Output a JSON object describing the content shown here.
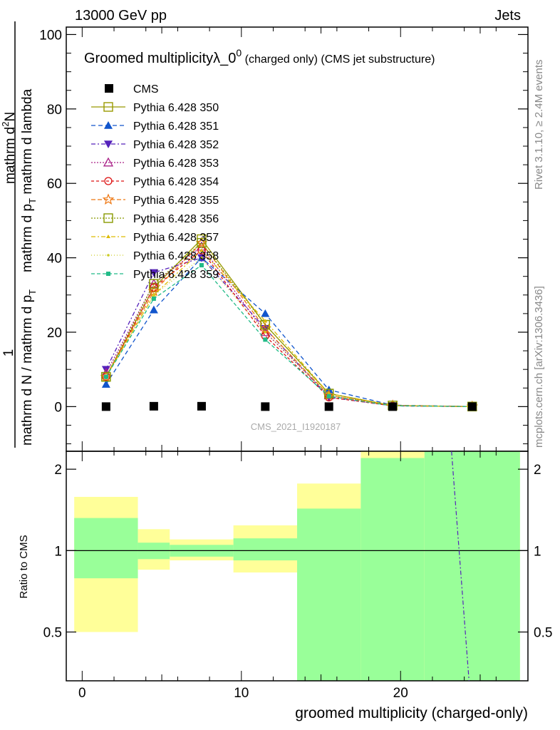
{
  "header": {
    "left": "13000 GeV pp",
    "right": "Jets"
  },
  "title": {
    "main": "Groomed multiplicity",
    "lambda": "λ_0",
    "sup": "0",
    "tail": " (charged only) (CMS jet substructure)"
  },
  "side_texts": {
    "rivet": "Rivet 3.1.10, ≥ 2.4M events",
    "mcplots": "mcplots.cern.ch [arXiv:1306.3436]"
  },
  "watermark": "CMS_2021_I1920187",
  "ylabel": {
    "one": "1",
    "denominator": "mathrm d N / mathrm d p",
    "denominator_sub": "T",
    "numerator_lower": "mathrm d p",
    "numerator_sub": "T",
    "numerator_rest": " mathrm d lambda",
    "numerator_upper": "mathrm d",
    "numerator_sup": "2",
    "numerator_n": "N"
  },
  "ratio_ylabel": "Ratio to CMS",
  "xlabel": "groomed multiplicity (charged-only)",
  "chart_data": [
    {
      "type": "line",
      "panel": "main",
      "xlim": [
        -1,
        28
      ],
      "ylim": [
        -12,
        102
      ],
      "y_ticks": [
        0,
        20,
        40,
        60,
        80,
        100
      ],
      "y_tick_labels": [
        "0",
        "20",
        "40",
        "60",
        "80",
        "100"
      ],
      "legend_placement": "top-left",
      "data_x": [
        1.5,
        4.5,
        7.5,
        11.5,
        15.5,
        19.5,
        24.5
      ],
      "data_label": "CMS",
      "data_y": [
        0,
        0.1,
        0.1,
        0,
        0,
        0,
        0
      ],
      "series": [
        {
          "name": "Pythia 6.428 350",
          "color": "#999900",
          "marker": "square-open",
          "dash": "",
          "y": [
            8,
            32,
            45,
            22,
            3.5,
            0.3,
            0.02
          ]
        },
        {
          "name": "Pythia 6.428 351",
          "color": "#1155cc",
          "marker": "triangle-up",
          "dash": "6,4",
          "y": [
            6,
            26,
            40,
            25,
            4.5,
            0.4,
            0.02
          ]
        },
        {
          "name": "Pythia 6.428 352",
          "color": "#5522bb",
          "marker": "triangle-down",
          "dash": "6,3,2,3",
          "y": [
            10,
            36,
            40,
            21,
            2.5,
            0.2,
            0.02
          ]
        },
        {
          "name": "Pythia 6.428 353",
          "color": "#aa2288",
          "marker": "triangle-open",
          "dash": "2,2",
          "y": [
            9,
            33,
            43,
            20,
            3,
            0.3,
            0.02
          ]
        },
        {
          "name": "Pythia 6.428 354",
          "color": "#dd1111",
          "marker": "circle-open",
          "dash": "4,3",
          "y": [
            8,
            32,
            42,
            19,
            2.5,
            0.2,
            0.02
          ]
        },
        {
          "name": "Pythia 6.428 355",
          "color": "#ee7711",
          "marker": "star-open",
          "dash": "6,3",
          "y": [
            8,
            31,
            44,
            21,
            3,
            0.3,
            0.02
          ]
        },
        {
          "name": "Pythia 6.428 356",
          "color": "#889900",
          "marker": "square-open",
          "dash": "2,2",
          "y": [
            8,
            33,
            44,
            22,
            3.5,
            0.3,
            0.02
          ]
        },
        {
          "name": "Pythia 6.428 357",
          "color": "#ddbb00",
          "marker": "tri-small",
          "dash": "6,3,2,3",
          "y": [
            8,
            30,
            42,
            23,
            3.5,
            0.3,
            0.02
          ]
        },
        {
          "name": "Pythia 6.428 358",
          "color": "#cccc22",
          "marker": "dot",
          "dash": "1,3",
          "y": [
            8,
            30,
            40,
            20,
            3,
            0.3,
            0.02
          ]
        },
        {
          "name": "Pythia 6.428 359",
          "color": "#22bb88",
          "marker": "square-filled-small",
          "dash": "5,3",
          "y": [
            8,
            29,
            38,
            18,
            2.8,
            0.2,
            0.02
          ]
        }
      ]
    },
    {
      "type": "area",
      "panel": "ratio",
      "xlim": [
        -1,
        28
      ],
      "ylim": [
        0.33,
        2.33
      ],
      "y_ticks": [
        0.5,
        1,
        2
      ],
      "y_tick_labels": [
        "0.5",
        "1",
        "2"
      ],
      "x_ticks": [
        0,
        10,
        20
      ],
      "x_tick_labels": [
        "0",
        "10",
        "20"
      ],
      "bands": [
        {
          "x0": -0.5,
          "x1": 3.5,
          "green": [
            0.79,
            1.32
          ],
          "yellow": [
            0.5,
            1.58
          ]
        },
        {
          "x0": 3.5,
          "x1": 5.5,
          "green": [
            0.93,
            1.07
          ],
          "yellow": [
            0.85,
            1.2
          ]
        },
        {
          "x0": 5.5,
          "x1": 9.5,
          "green": [
            0.95,
            1.05
          ],
          "yellow": [
            0.92,
            1.1
          ]
        },
        {
          "x0": 9.5,
          "x1": 13.5,
          "green": [
            0.92,
            1.11
          ],
          "yellow": [
            0.83,
            1.24
          ]
        },
        {
          "x0": 13.5,
          "x1": 17.5,
          "green": [
            0.33,
            1.43
          ],
          "yellow": [
            0.33,
            1.77
          ]
        },
        {
          "x0": 17.5,
          "x1": 21.5,
          "green": [
            0.33,
            2.2
          ],
          "yellow": [
            0.33,
            2.33
          ]
        },
        {
          "x0": 21.5,
          "x1": 27.5,
          "green": [
            0.33,
            2.33
          ],
          "yellow": [
            0.33,
            2.33
          ]
        }
      ],
      "green_color": "#99ff99",
      "yellow_color": "#ffff99",
      "reference_line": 1,
      "ratio_line": {
        "x": [
          23.2,
          24.3
        ],
        "y": [
          2.33,
          0.33
        ],
        "color": "#5522bb"
      }
    }
  ]
}
